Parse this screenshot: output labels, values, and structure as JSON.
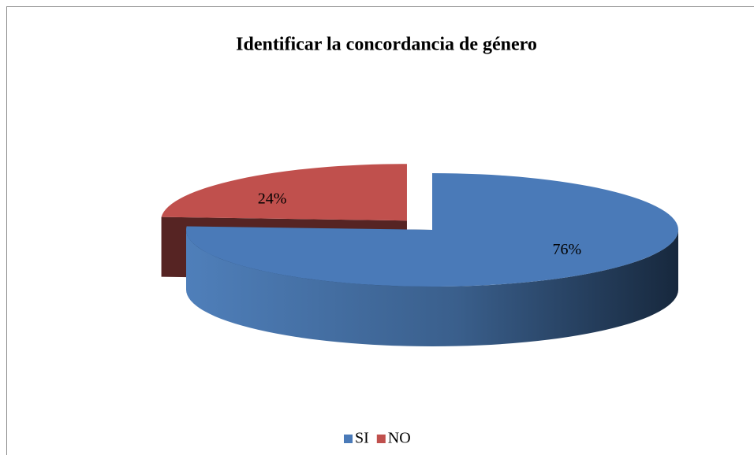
{
  "chart_data": {
    "type": "pie",
    "title": "Identificar la concordancia de género",
    "categories": [
      "SI",
      "NO"
    ],
    "values": [
      76,
      24
    ],
    "value_labels": [
      "76%",
      "24%"
    ],
    "colors": [
      "#4a7ab8",
      "#c0504d"
    ],
    "legend": "bottom"
  }
}
